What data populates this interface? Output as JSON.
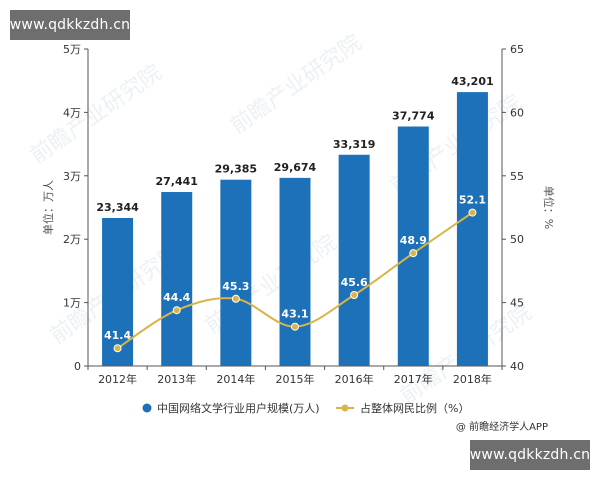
{
  "watermarks": {
    "top_url": "www.qdkkzdh.cn",
    "bottom_url": "www.qdkkzdh.cn",
    "background_stamp": "前瞻产业研究院"
  },
  "credit": "@ 前瞻经济学人APP",
  "chart_data": {
    "type": "bar",
    "categories": [
      "2012年",
      "2013年",
      "2014年",
      "2015年",
      "2016年",
      "2017年",
      "2018年"
    ],
    "series": [
      {
        "name": "中国网络文学行业用户规模(万人)",
        "type": "bar",
        "axis": "left",
        "color": "#1d71b8",
        "values": [
          23344,
          27441,
          29385,
          29674,
          33319,
          37774,
          43201
        ],
        "labels": [
          "23,344",
          "27,441",
          "29,385",
          "29,674",
          "33,319",
          "37,774",
          "43,201"
        ]
      },
      {
        "name": "占整体网民比例（%）",
        "type": "line",
        "axis": "right",
        "color": "#d9b44a",
        "values": [
          41.4,
          44.4,
          45.3,
          43.1,
          45.6,
          48.9,
          52.1
        ],
        "labels": [
          "41.4",
          "44.4",
          "45.3",
          "43.1",
          "45.6",
          "48.9",
          "52.1"
        ]
      }
    ],
    "left_axis": {
      "label": "单位：万人",
      "ylim": [
        0,
        50000
      ],
      "ticks": [
        0,
        10000,
        20000,
        30000,
        40000,
        50000
      ],
      "tick_labels": [
        "0",
        "1万",
        "2万",
        "3万",
        "4万",
        "5万"
      ]
    },
    "right_axis": {
      "label": "单位：%",
      "ylim": [
        40,
        65
      ],
      "ticks": [
        40,
        45,
        50,
        55,
        60,
        65
      ],
      "tick_labels": [
        "40",
        "45",
        "50",
        "55",
        "60",
        "65"
      ]
    },
    "grid": false,
    "legend_position": "bottom"
  }
}
